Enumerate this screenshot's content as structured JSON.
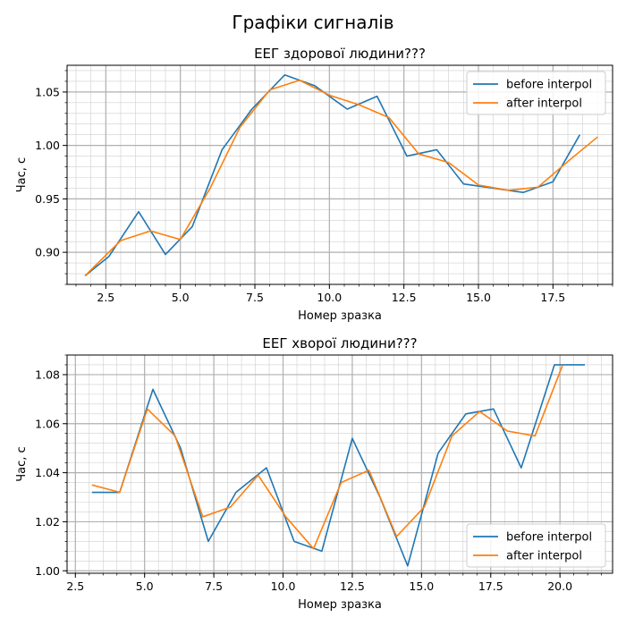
{
  "figure": {
    "suptitle": "Графіки сигналів"
  },
  "chart_data": [
    {
      "type": "line",
      "title": "ЕЕГ здорової людини???",
      "xlabel": "Номер зразка",
      "ylabel": "Час, с",
      "xlim": [
        1.2,
        19.5
      ],
      "ylim": [
        0.87,
        1.075
      ],
      "xticks": [
        "2.5",
        "5.0",
        "7.5",
        "10.0",
        "12.5",
        "15.0",
        "17.5"
      ],
      "yticks": [
        "0.90",
        "0.95",
        "1.00",
        "1.05"
      ],
      "grid": "major and minor",
      "legend_position": "top-right",
      "series": [
        {
          "name": "before interpol",
          "color": "#1f77b4",
          "x": [
            1.8,
            2.6,
            3.6,
            4.5,
            5.4,
            6.4,
            7.4,
            8.5,
            9.5,
            10.6,
            11.6,
            12.6,
            13.6,
            14.5,
            15.5,
            16.5,
            17.5,
            18.4
          ],
          "y": [
            0.878,
            0.896,
            0.938,
            0.898,
            0.924,
            0.996,
            1.034,
            1.066,
            1.056,
            1.034,
            1.046,
            0.99,
            0.996,
            0.964,
            0.96,
            0.956,
            0.966,
            1.01
          ]
        },
        {
          "name": "after interpol",
          "color": "#ff7f0e",
          "x": [
            1.8,
            3.0,
            4.0,
            5.0,
            6.0,
            7.0,
            8.0,
            9.0,
            10.0,
            11.0,
            12.0,
            13.0,
            14.0,
            15.0,
            16.0,
            17.0,
            18.0,
            19.0
          ],
          "y": [
            0.878,
            0.911,
            0.92,
            0.912,
            0.96,
            1.017,
            1.052,
            1.061,
            1.047,
            1.038,
            1.026,
            0.992,
            0.984,
            0.963,
            0.958,
            0.961,
            0.985,
            1.008
          ]
        }
      ]
    },
    {
      "type": "line",
      "title": "ЕЕГ хворої людини???",
      "xlabel": "Номер зразка",
      "ylabel": "Час, с",
      "xlim": [
        2.2,
        21.9
      ],
      "ylim": [
        0.999,
        1.088
      ],
      "xticks": [
        "2.5",
        "5.0",
        "7.5",
        "10.0",
        "12.5",
        "15.0",
        "17.5",
        "20.0"
      ],
      "yticks": [
        "1.00",
        "1.02",
        "1.04",
        "1.06",
        "1.08"
      ],
      "grid": "major and minor",
      "legend_position": "bottom-right",
      "series": [
        {
          "name": "before interpol",
          "color": "#1f77b4",
          "x": [
            3.1,
            4.1,
            5.3,
            6.3,
            7.3,
            8.3,
            9.4,
            10.4,
            11.4,
            12.5,
            13.5,
            14.5,
            15.6,
            16.6,
            17.6,
            18.6,
            19.8,
            20.9
          ],
          "y": [
            1.032,
            1.032,
            1.074,
            1.05,
            1.012,
            1.032,
            1.042,
            1.012,
            1.008,
            1.054,
            1.03,
            1.002,
            1.048,
            1.064,
            1.066,
            1.042,
            1.084,
            1.084
          ]
        },
        {
          "name": "after interpol",
          "color": "#ff7f0e",
          "x": [
            3.1,
            4.1,
            5.1,
            6.1,
            7.1,
            8.1,
            9.1,
            10.1,
            11.1,
            12.1,
            13.1,
            14.1,
            15.1,
            16.1,
            17.1,
            18.1,
            19.1,
            20.1
          ],
          "y": [
            1.035,
            1.032,
            1.066,
            1.055,
            1.022,
            1.026,
            1.039,
            1.022,
            1.009,
            1.036,
            1.041,
            1.014,
            1.026,
            1.055,
            1.065,
            1.057,
            1.055,
            1.084
          ]
        }
      ]
    }
  ]
}
